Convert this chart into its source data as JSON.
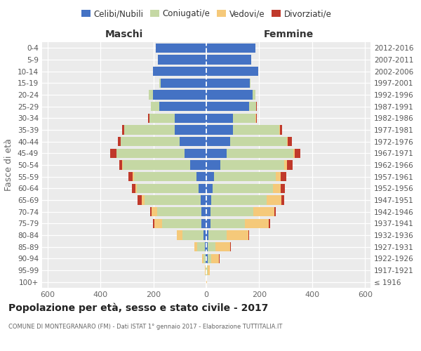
{
  "age_groups": [
    "100+",
    "95-99",
    "90-94",
    "85-89",
    "80-84",
    "75-79",
    "70-74",
    "65-69",
    "60-64",
    "55-59",
    "50-54",
    "45-49",
    "40-44",
    "35-39",
    "30-34",
    "25-29",
    "20-24",
    "15-19",
    "10-14",
    "5-9",
    "0-4"
  ],
  "birth_years": [
    "≤ 1916",
    "1917-1921",
    "1922-1926",
    "1927-1931",
    "1932-1936",
    "1937-1941",
    "1942-1946",
    "1947-1951",
    "1952-1956",
    "1957-1961",
    "1962-1966",
    "1967-1971",
    "1972-1976",
    "1977-1981",
    "1982-1986",
    "1987-1991",
    "1992-1996",
    "1997-2001",
    "2002-2006",
    "2007-2011",
    "2012-2016"
  ],
  "maschi_celibi": [
    1,
    1,
    2,
    5,
    10,
    18,
    18,
    22,
    30,
    38,
    62,
    82,
    100,
    120,
    120,
    178,
    202,
    172,
    202,
    182,
    192
  ],
  "maschi_coniugati": [
    0,
    2,
    8,
    30,
    80,
    148,
    168,
    212,
    232,
    236,
    252,
    256,
    222,
    190,
    95,
    30,
    15,
    5,
    0,
    0,
    0
  ],
  "maschi_vedovi": [
    0,
    2,
    5,
    10,
    22,
    30,
    20,
    10,
    5,
    5,
    3,
    2,
    1,
    1,
    0,
    0,
    0,
    0,
    0,
    0,
    0
  ],
  "maschi_divorziati": [
    0,
    0,
    0,
    0,
    0,
    5,
    5,
    15,
    15,
    15,
    12,
    22,
    12,
    8,
    5,
    2,
    0,
    0,
    0,
    0,
    0
  ],
  "femmine_nubili": [
    1,
    1,
    4,
    5,
    8,
    15,
    15,
    18,
    25,
    30,
    52,
    76,
    90,
    100,
    100,
    162,
    175,
    165,
    195,
    170,
    185
  ],
  "femmine_coniugate": [
    0,
    4,
    15,
    30,
    70,
    130,
    162,
    210,
    226,
    232,
    242,
    252,
    215,
    175,
    85,
    25,
    10,
    3,
    0,
    0,
    0
  ],
  "femmine_vedove": [
    2,
    8,
    30,
    55,
    80,
    92,
    80,
    55,
    30,
    20,
    10,
    5,
    3,
    2,
    2,
    1,
    0,
    0,
    0,
    0,
    0
  ],
  "femmine_divorziate": [
    0,
    0,
    2,
    3,
    3,
    5,
    5,
    10,
    15,
    20,
    22,
    22,
    15,
    10,
    5,
    2,
    1,
    0,
    0,
    0,
    0
  ],
  "colors": {
    "celibi_nubili": "#4472C4",
    "coniugati": "#C5D8A4",
    "vedovi": "#F5C97A",
    "divorziati": "#C0392B"
  },
  "xlim": 620,
  "title": "Popolazione per età, sesso e stato civile - 2017",
  "subtitle": "COMUNE DI MONTEGRANARO (FM) - Dati ISTAT 1° gennaio 2017 - Elaborazione TUTTITALIA.IT",
  "ylabel_left": "Fasce di età",
  "label_maschi": "Maschi",
  "label_femmine": "Femmine",
  "legend_labels": [
    "Celibi/Nubili",
    "Coniugati/e",
    "Vedovi/e",
    "Divorziati/e"
  ]
}
